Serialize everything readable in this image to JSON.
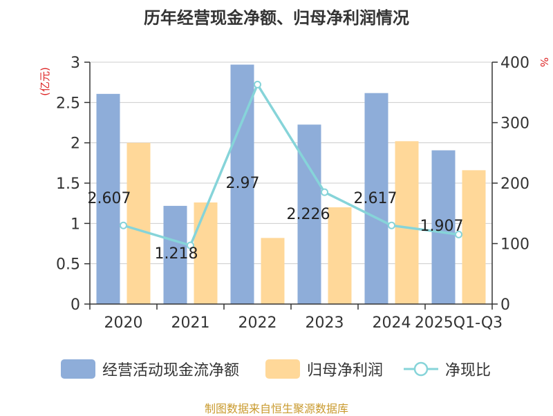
{
  "title": "历年经营现金净额、归母净利润情况",
  "source": "制图数据来自恒生聚源数据库",
  "chart_data": {
    "type": "bar",
    "categories": [
      "2020",
      "2021",
      "2022",
      "2023",
      "2024",
      "2025Q1-Q3"
    ],
    "left_axis": {
      "unit": "(亿元)",
      "ylim": [
        0,
        3
      ],
      "ticks": [
        "0",
        "0.5",
        "1",
        "1.5",
        "2",
        "2.5",
        "3"
      ]
    },
    "right_axis": {
      "unit": "%",
      "ylim": [
        0,
        400
      ],
      "ticks": [
        "0",
        "100",
        "200",
        "300",
        "400"
      ]
    },
    "series": [
      {
        "name": "经营活动现金流净额",
        "kind": "bar",
        "axis": "left",
        "color": "#8eadd9",
        "values": [
          2.607,
          1.218,
          2.97,
          2.226,
          2.617,
          1.907
        ],
        "labels": [
          "2.607",
          "1.218",
          "2.97",
          "2.226",
          "2.617",
          "1.907"
        ]
      },
      {
        "name": "归母净利润",
        "kind": "bar",
        "axis": "left",
        "color": "#ffd899",
        "values": [
          2.0,
          1.26,
          0.82,
          1.2,
          2.02,
          1.66
        ]
      },
      {
        "name": "净现比",
        "kind": "line",
        "axis": "right",
        "color": "#86d4d9",
        "values": [
          130,
          97,
          363,
          185,
          130,
          115
        ]
      }
    ],
    "grid": true,
    "legend_position": "bottom"
  }
}
